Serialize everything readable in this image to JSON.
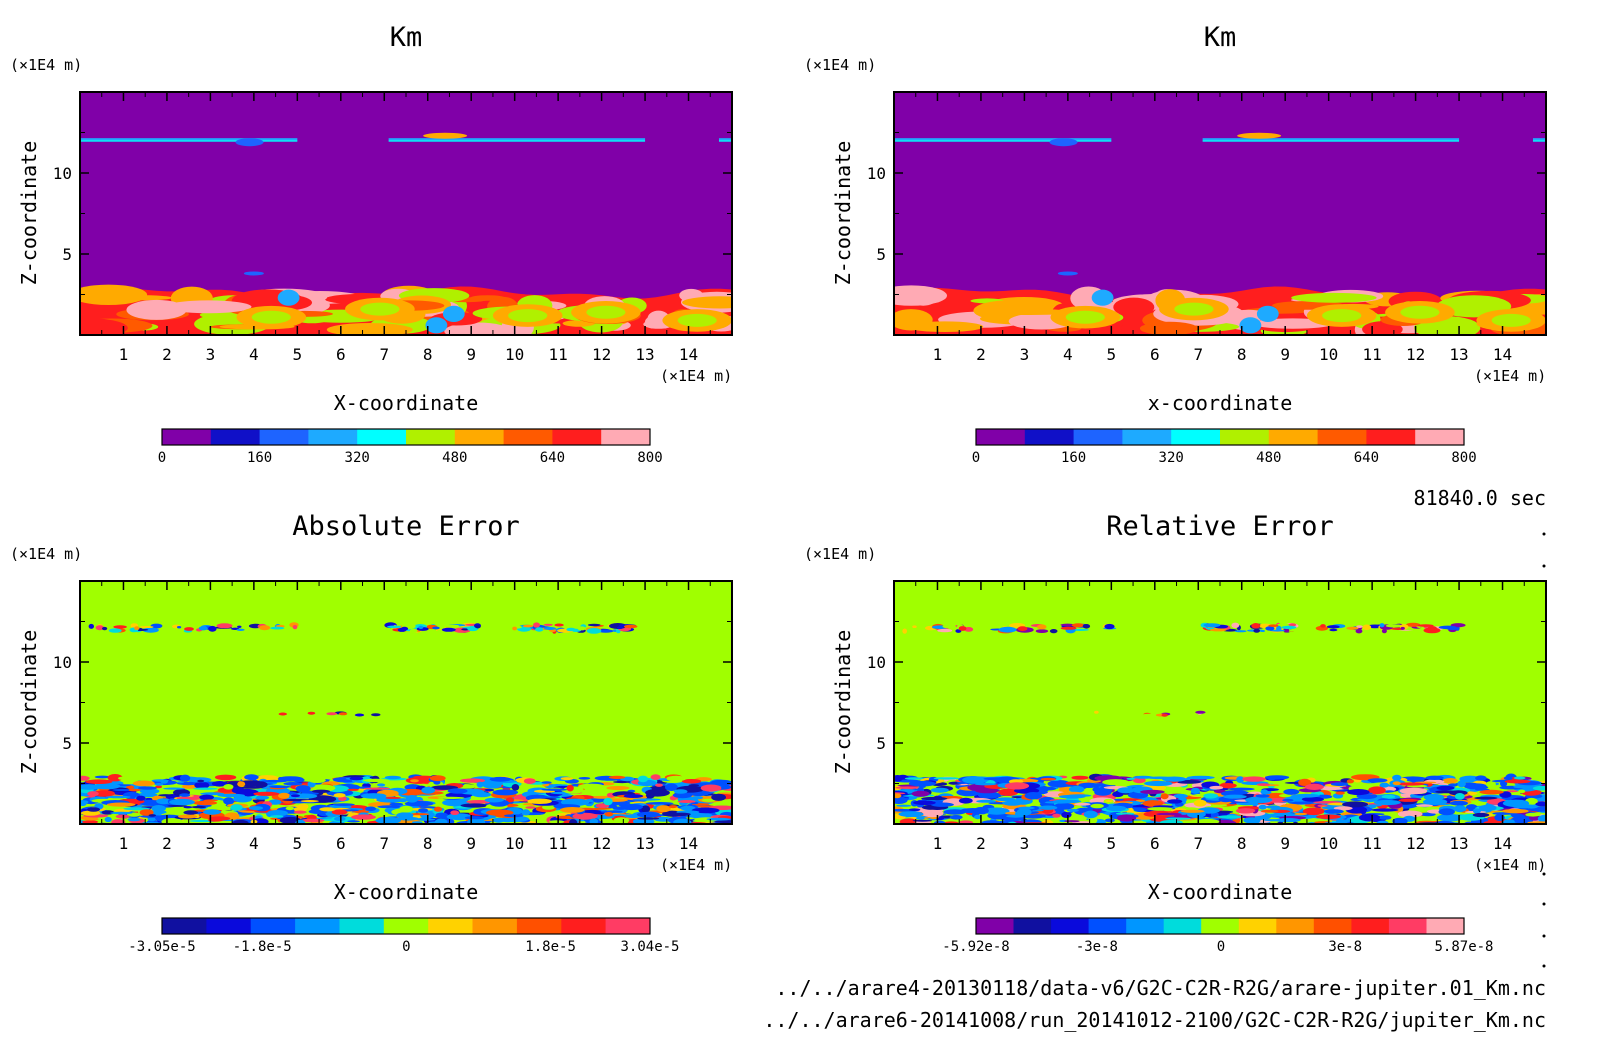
{
  "time_label": "81840.0 sec",
  "file_lines": [
    "../../arare4-20130118/data-v6/G2C-C2R-R2G/arare-jupiter.01_Km.nc",
    "../../arare6-20141008/run_20141012-2100/G2C-C2R-R2G/jupiter_Km.nc"
  ],
  "chart_data": [
    {
      "type": "heatmap",
      "title": "Km",
      "xlabel": "X-coordinate",
      "ylabel": "Z-coordinate",
      "x_unit": "(×1E4 m)",
      "y_unit": "(×1E4 m)",
      "xlim": [
        0,
        15
      ],
      "ylim": [
        0,
        15
      ],
      "x_ticks": [
        "1",
        "2",
        "3",
        "4",
        "5",
        "6",
        "7",
        "8",
        "9",
        "10",
        "11",
        "12",
        "13",
        "14"
      ],
      "y_ticks": [
        "5",
        "10"
      ],
      "colorbar": {
        "colors": [
          "#8000a8",
          "#1010c8",
          "#1e64ff",
          "#1eaaff",
          "#00ffff",
          "#b0f000",
          "#ffaa00",
          "#ff5a00",
          "#ff1e1e",
          "#ffaab4"
        ],
        "tick_labels": [
          "0",
          "160",
          "320",
          "480",
          "640",
          "800"
        ],
        "tick_values": [
          0,
          160,
          320,
          480,
          640,
          800
        ],
        "range": [
          0,
          800
        ]
      },
      "features": "Background near 0 (purple); thin layer near z=12; turbulent boundary layer z<3 with values 400-800"
    },
    {
      "type": "heatmap",
      "title": "Km",
      "xlabel": "x-coordinate",
      "ylabel": "Z-coordinate",
      "x_unit": "(×1E4 m)",
      "y_unit": "(×1E4 m)",
      "xlim": [
        0,
        15
      ],
      "ylim": [
        0,
        15
      ],
      "x_ticks": [
        "1",
        "2",
        "3",
        "4",
        "5",
        "6",
        "7",
        "8",
        "9",
        "10",
        "11",
        "12",
        "13",
        "14"
      ],
      "y_ticks": [
        "5",
        "10"
      ],
      "colorbar": {
        "colors": [
          "#8000a8",
          "#1010c8",
          "#1e64ff",
          "#1eaaff",
          "#00ffff",
          "#b0f000",
          "#ffaa00",
          "#ff5a00",
          "#ff1e1e",
          "#ffaab4"
        ],
        "tick_labels": [
          "0",
          "160",
          "320",
          "480",
          "640",
          "800"
        ],
        "tick_values": [
          0,
          160,
          320,
          480,
          640,
          800
        ],
        "range": [
          0,
          800
        ]
      },
      "features": "Identical pattern to first Km panel"
    },
    {
      "type": "heatmap",
      "title": "Absolute Error",
      "xlabel": "X-coordinate",
      "ylabel": "Z-coordinate",
      "x_unit": "(×1E4 m)",
      "y_unit": "(×1E4 m)",
      "xlim": [
        0,
        15
      ],
      "ylim": [
        0,
        15
      ],
      "x_ticks": [
        "1",
        "2",
        "3",
        "4",
        "5",
        "6",
        "7",
        "8",
        "9",
        "10",
        "11",
        "12",
        "13",
        "14"
      ],
      "y_ticks": [
        "5",
        "10"
      ],
      "colorbar": {
        "colors": [
          "#1010a0",
          "#0a0adc",
          "#0050ff",
          "#0096ff",
          "#00dcdc",
          "#a0ff00",
          "#ffd200",
          "#ff9600",
          "#ff5000",
          "#ff1e1e",
          "#ff3c64"
        ],
        "tick_labels": [
          "-3.05e-5",
          "-1.8e-5",
          "0",
          "1.8e-5",
          "3.04e-5"
        ],
        "tick_values": [
          -3.05e-05,
          -1.8e-05,
          0,
          1.8e-05,
          3.04e-05
        ],
        "range": [
          -3.05e-05,
          3.04e-05
        ]
      },
      "features": "Background 0 (green); noisy errors along z=12 layer and boundary layer z<3"
    },
    {
      "type": "heatmap",
      "title": "Relative Error",
      "xlabel": "X-coordinate",
      "ylabel": "Z-coordinate",
      "x_unit": "(×1E4 m)",
      "y_unit": "(×1E4 m)",
      "xlim": [
        0,
        15
      ],
      "ylim": [
        0,
        15
      ],
      "x_ticks": [
        "1",
        "2",
        "3",
        "4",
        "5",
        "6",
        "7",
        "8",
        "9",
        "10",
        "11",
        "12",
        "13",
        "14"
      ],
      "y_ticks": [
        "5",
        "10"
      ],
      "colorbar": {
        "colors": [
          "#8000a8",
          "#1010a0",
          "#0a0adc",
          "#0050ff",
          "#0096ff",
          "#00dcdc",
          "#a0ff00",
          "#ffd200",
          "#ff9600",
          "#ff5000",
          "#ff1e1e",
          "#ff3c64",
          "#ffaab4"
        ],
        "tick_labels": [
          "-5.92e-8",
          "-3e-8",
          "0",
          "3e-8",
          "5.87e-8"
        ],
        "tick_values": [
          -5.92e-08,
          -3e-08,
          0,
          3e-08,
          5.87e-08
        ],
        "range": [
          -5.92e-08,
          5.87e-08
        ]
      },
      "features": "Background 0 (green); noisy errors along z=12 layer and boundary layer z<3"
    }
  ]
}
